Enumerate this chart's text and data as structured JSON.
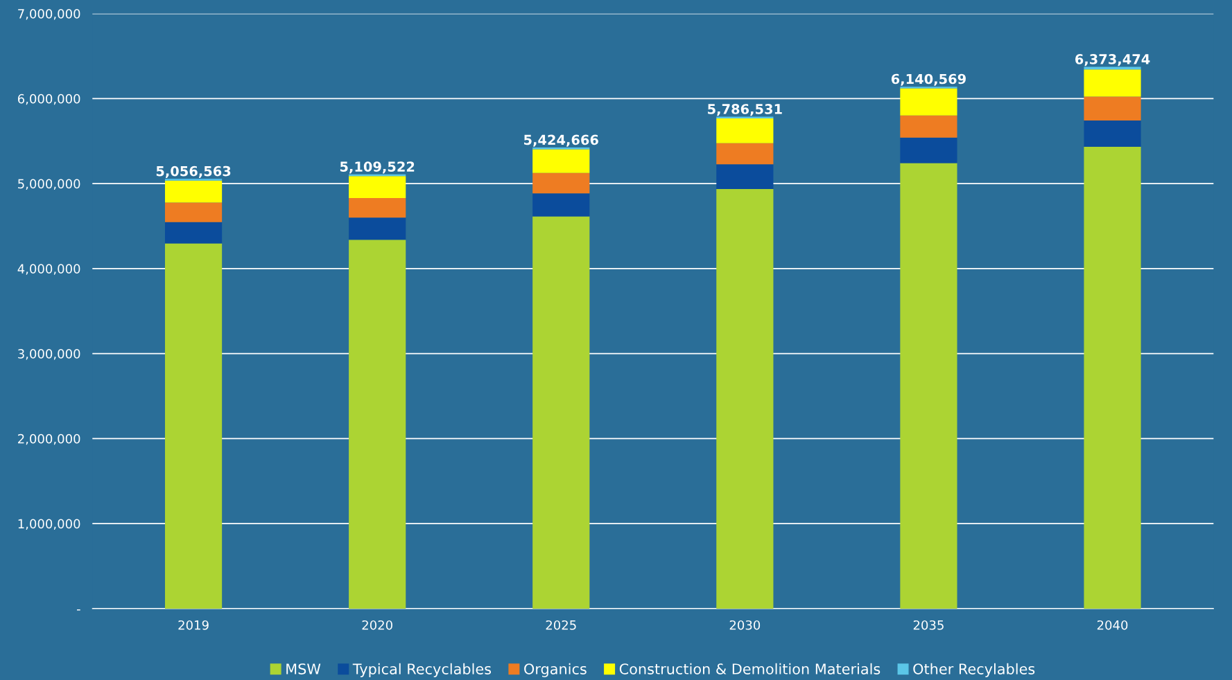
{
  "chart_data": {
    "type": "bar",
    "stacked": true,
    "categories": [
      "2019",
      "2020",
      "2025",
      "2030",
      "2035",
      "2040"
    ],
    "series": [
      {
        "name": "MSW",
        "color": "#acd433",
        "values": [
          4296563,
          4339522,
          4614666,
          4936531,
          5240569,
          5433474
        ]
      },
      {
        "name": "Typical Recyclables",
        "color": "#0b4c9c",
        "values": [
          250000,
          260000,
          270000,
          290000,
          300000,
          310000
        ]
      },
      {
        "name": "Organics",
        "color": "#ee7c22",
        "values": [
          230000,
          230000,
          240000,
          250000,
          260000,
          280000
        ]
      },
      {
        "name": "Construction & Demolition Materials",
        "color": "#ffff00",
        "values": [
          260000,
          260000,
          280000,
          290000,
          320000,
          320000
        ]
      },
      {
        "name": "Other Recylables",
        "color": "#5bc6e8",
        "values": [
          20000,
          20000,
          20000,
          20000,
          20000,
          30000
        ]
      }
    ],
    "totals": [
      "5,056,563",
      "5,109,522",
      "5,424,666",
      "5,786,531",
      "6,140,569",
      "6,373,474"
    ],
    "ylim": [
      0,
      7000000
    ],
    "yticks": [
      {
        "value": 0,
        "label": "-"
      },
      {
        "value": 1000000,
        "label": "1,000,000"
      },
      {
        "value": 2000000,
        "label": "2,000,000"
      },
      {
        "value": 3000000,
        "label": "3,000,000"
      },
      {
        "value": 4000000,
        "label": "4,000,000"
      },
      {
        "value": 5000000,
        "label": "5,000,000"
      },
      {
        "value": 6000000,
        "label": "6,000,000"
      },
      {
        "value": 7000000,
        "label": "7,000,000"
      }
    ],
    "grid": "y",
    "legend": "bottom"
  }
}
